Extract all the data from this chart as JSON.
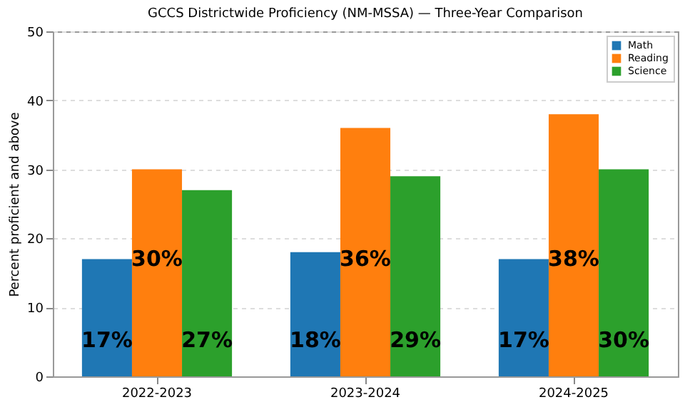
{
  "chart_data": {
    "type": "bar",
    "title": "GCCS Districtwide Proficiency (NM-MSSA) — Three-Year Comparison",
    "ylabel": "Percent proficient and above",
    "categories": [
      "2022-2023",
      "2023-2024",
      "2024-2025"
    ],
    "series": [
      {
        "name": "Math",
        "color": "#1f77b4",
        "values": [
          17,
          18,
          17
        ],
        "value_labels": [
          "17%",
          "18%",
          "17%"
        ]
      },
      {
        "name": "Reading",
        "color": "#ff7f0e",
        "values": [
          30,
          36,
          38
        ],
        "value_labels": [
          "30%",
          "36%",
          "38%"
        ]
      },
      {
        "name": "Science",
        "color": "#2ca02c",
        "values": [
          27,
          29,
          30
        ],
        "value_labels": [
          "27%",
          "29%",
          "30%"
        ]
      }
    ],
    "ylim": [
      0,
      50
    ],
    "yticks": [
      0,
      10,
      20,
      30,
      40,
      50
    ],
    "grid": "y",
    "legend": "top right"
  }
}
